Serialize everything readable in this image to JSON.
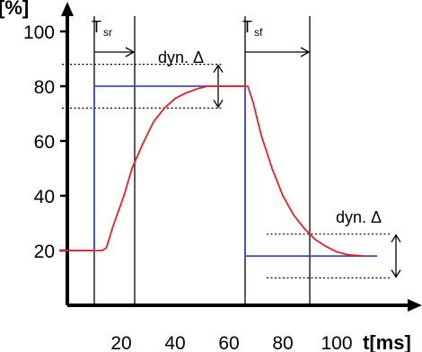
{
  "chart_data": {
    "type": "line",
    "xlabel": "t[ms]",
    "ylabel": "[%]",
    "xlim": [
      -8,
      115
    ],
    "ylim": [
      0,
      105
    ],
    "x_ticks": [
      20,
      40,
      60,
      80,
      100
    ],
    "y_ticks": [
      20,
      40,
      60,
      80,
      100
    ],
    "series": [
      {
        "color": "#3b4bc8",
        "points": [
          [
            -3,
            20
          ],
          [
            10,
            20
          ],
          [
            10,
            80
          ],
          [
            66,
            80
          ],
          [
            66,
            18
          ],
          [
            115,
            18
          ]
        ]
      },
      {
        "color": "#e8202a",
        "points": [
          [
            -3,
            20
          ],
          [
            13,
            20
          ],
          [
            14.5,
            21
          ],
          [
            17,
            29
          ],
          [
            21,
            40
          ],
          [
            24,
            50
          ],
          [
            28,
            59
          ],
          [
            32,
            67
          ],
          [
            36,
            72
          ],
          [
            40,
            75.5
          ],
          [
            44,
            77.5
          ],
          [
            48,
            79
          ],
          [
            52,
            80
          ],
          [
            67,
            80
          ],
          [
            69,
            74
          ],
          [
            72,
            62
          ],
          [
            76,
            50
          ],
          [
            80,
            40
          ],
          [
            84,
            33
          ],
          [
            88,
            28
          ],
          [
            92,
            24
          ],
          [
            96,
            21.5
          ],
          [
            100,
            19.5
          ],
          [
            104,
            18.5
          ],
          [
            110,
            18
          ]
        ]
      }
    ],
    "annotations": {
      "t_sr": {
        "main": "T",
        "sub": "sr",
        "x_start": 10,
        "x_end": 25
      },
      "t_sf": {
        "main": "T",
        "sub": "sf",
        "x_start": 66,
        "x_end": 90
      },
      "dyn_top": {
        "label": "dyn. Δ",
        "center": 80,
        "band": [
          72,
          88
        ]
      },
      "dyn_bottom": {
        "label": "dyn. Δ",
        "center": 18,
        "band": [
          10,
          26
        ]
      }
    },
    "grid": false
  }
}
